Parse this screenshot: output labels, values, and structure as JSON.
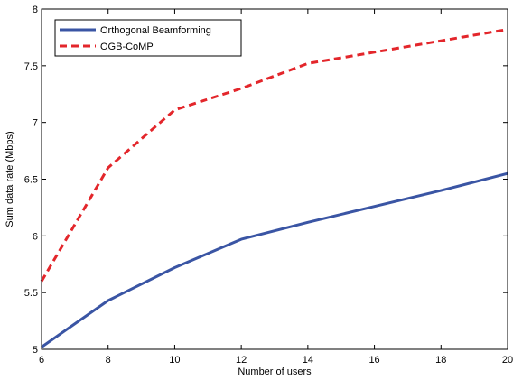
{
  "chart_data": {
    "type": "line",
    "xlabel": "Number of users",
    "ylabel": "Sum data rate (Mbps)",
    "xlim": [
      6,
      20
    ],
    "ylim": [
      5,
      8
    ],
    "xticks": [
      6,
      8,
      10,
      12,
      14,
      16,
      18,
      20
    ],
    "yticks": [
      5,
      5.5,
      6,
      6.5,
      7,
      7.5,
      8
    ],
    "ytick_labels": [
      "5",
      "5.5",
      "6",
      "6.5",
      "7",
      "7.5",
      "8"
    ],
    "grid": false,
    "legend_position": "top-left",
    "series": [
      {
        "name": "Orthogonal Beamforming",
        "color": "#3a55a4",
        "dash": "solid",
        "x": [
          6,
          8,
          10,
          12,
          14,
          16,
          18,
          20
        ],
        "y": [
          5.02,
          5.43,
          5.72,
          5.97,
          6.12,
          6.26,
          6.4,
          6.55
        ]
      },
      {
        "name": "OGB-CoMP",
        "color": "#e3262b",
        "dash": "dashed",
        "x": [
          6,
          8,
          10,
          12,
          14,
          16,
          18,
          20
        ],
        "y": [
          5.6,
          6.6,
          7.11,
          7.3,
          7.52,
          7.62,
          7.72,
          7.82
        ]
      }
    ]
  }
}
